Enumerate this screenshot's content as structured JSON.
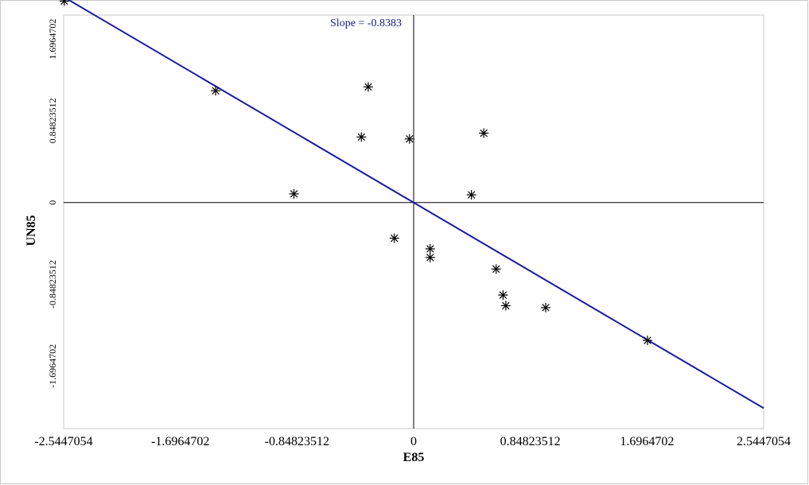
{
  "chart_data": {
    "type": "scatter",
    "title": "Slope = -0.8383",
    "xlabel": "E85",
    "ylabel": "UN85",
    "xlim": [
      -2.5447054,
      2.5447054
    ],
    "ylim": [
      -2.3447054,
      1.9447054
    ],
    "x_ticks": [
      -2.5447054,
      -1.6964702,
      -0.84823512,
      0,
      0.84823512,
      1.6964702,
      2.5447054
    ],
    "x_tick_labels": [
      "-2.5447054",
      "-1.6964702",
      "-0.84823512",
      "0",
      "0.84823512",
      "1.6964702",
      "2.5447054"
    ],
    "y_ticks": [
      1.6964702,
      0.84823512,
      0,
      -0.84823512,
      -1.6964702
    ],
    "y_tick_labels": [
      "1.6964702",
      "0.84823512",
      "0",
      "-0.84823512",
      "-1.6964702"
    ],
    "grid": false,
    "regression_line": {
      "slope": -0.8383,
      "intercept": 0
    },
    "points": [
      {
        "x": -2.54,
        "y": 2.09
      },
      {
        "x": -1.44,
        "y": 1.16
      },
      {
        "x": -0.33,
        "y": 1.2
      },
      {
        "x": -0.38,
        "y": 0.68
      },
      {
        "x": -0.87,
        "y": 0.09
      },
      {
        "x": -0.03,
        "y": 0.66
      },
      {
        "x": -0.14,
        "y": -0.37
      },
      {
        "x": 0.12,
        "y": -0.48
      },
      {
        "x": 0.12,
        "y": -0.57
      },
      {
        "x": 0.51,
        "y": 0.72
      },
      {
        "x": 0.42,
        "y": 0.08
      },
      {
        "x": 0.6,
        "y": -0.69
      },
      {
        "x": 0.65,
        "y": -0.96
      },
      {
        "x": 0.67,
        "y": -1.07
      },
      {
        "x": 0.96,
        "y": -1.09
      },
      {
        "x": 1.7,
        "y": -1.43
      }
    ],
    "colors": {
      "line": "#1a1aa6",
      "title": "#1a1a8c",
      "points": "#000000",
      "axes": "#000000"
    }
  }
}
